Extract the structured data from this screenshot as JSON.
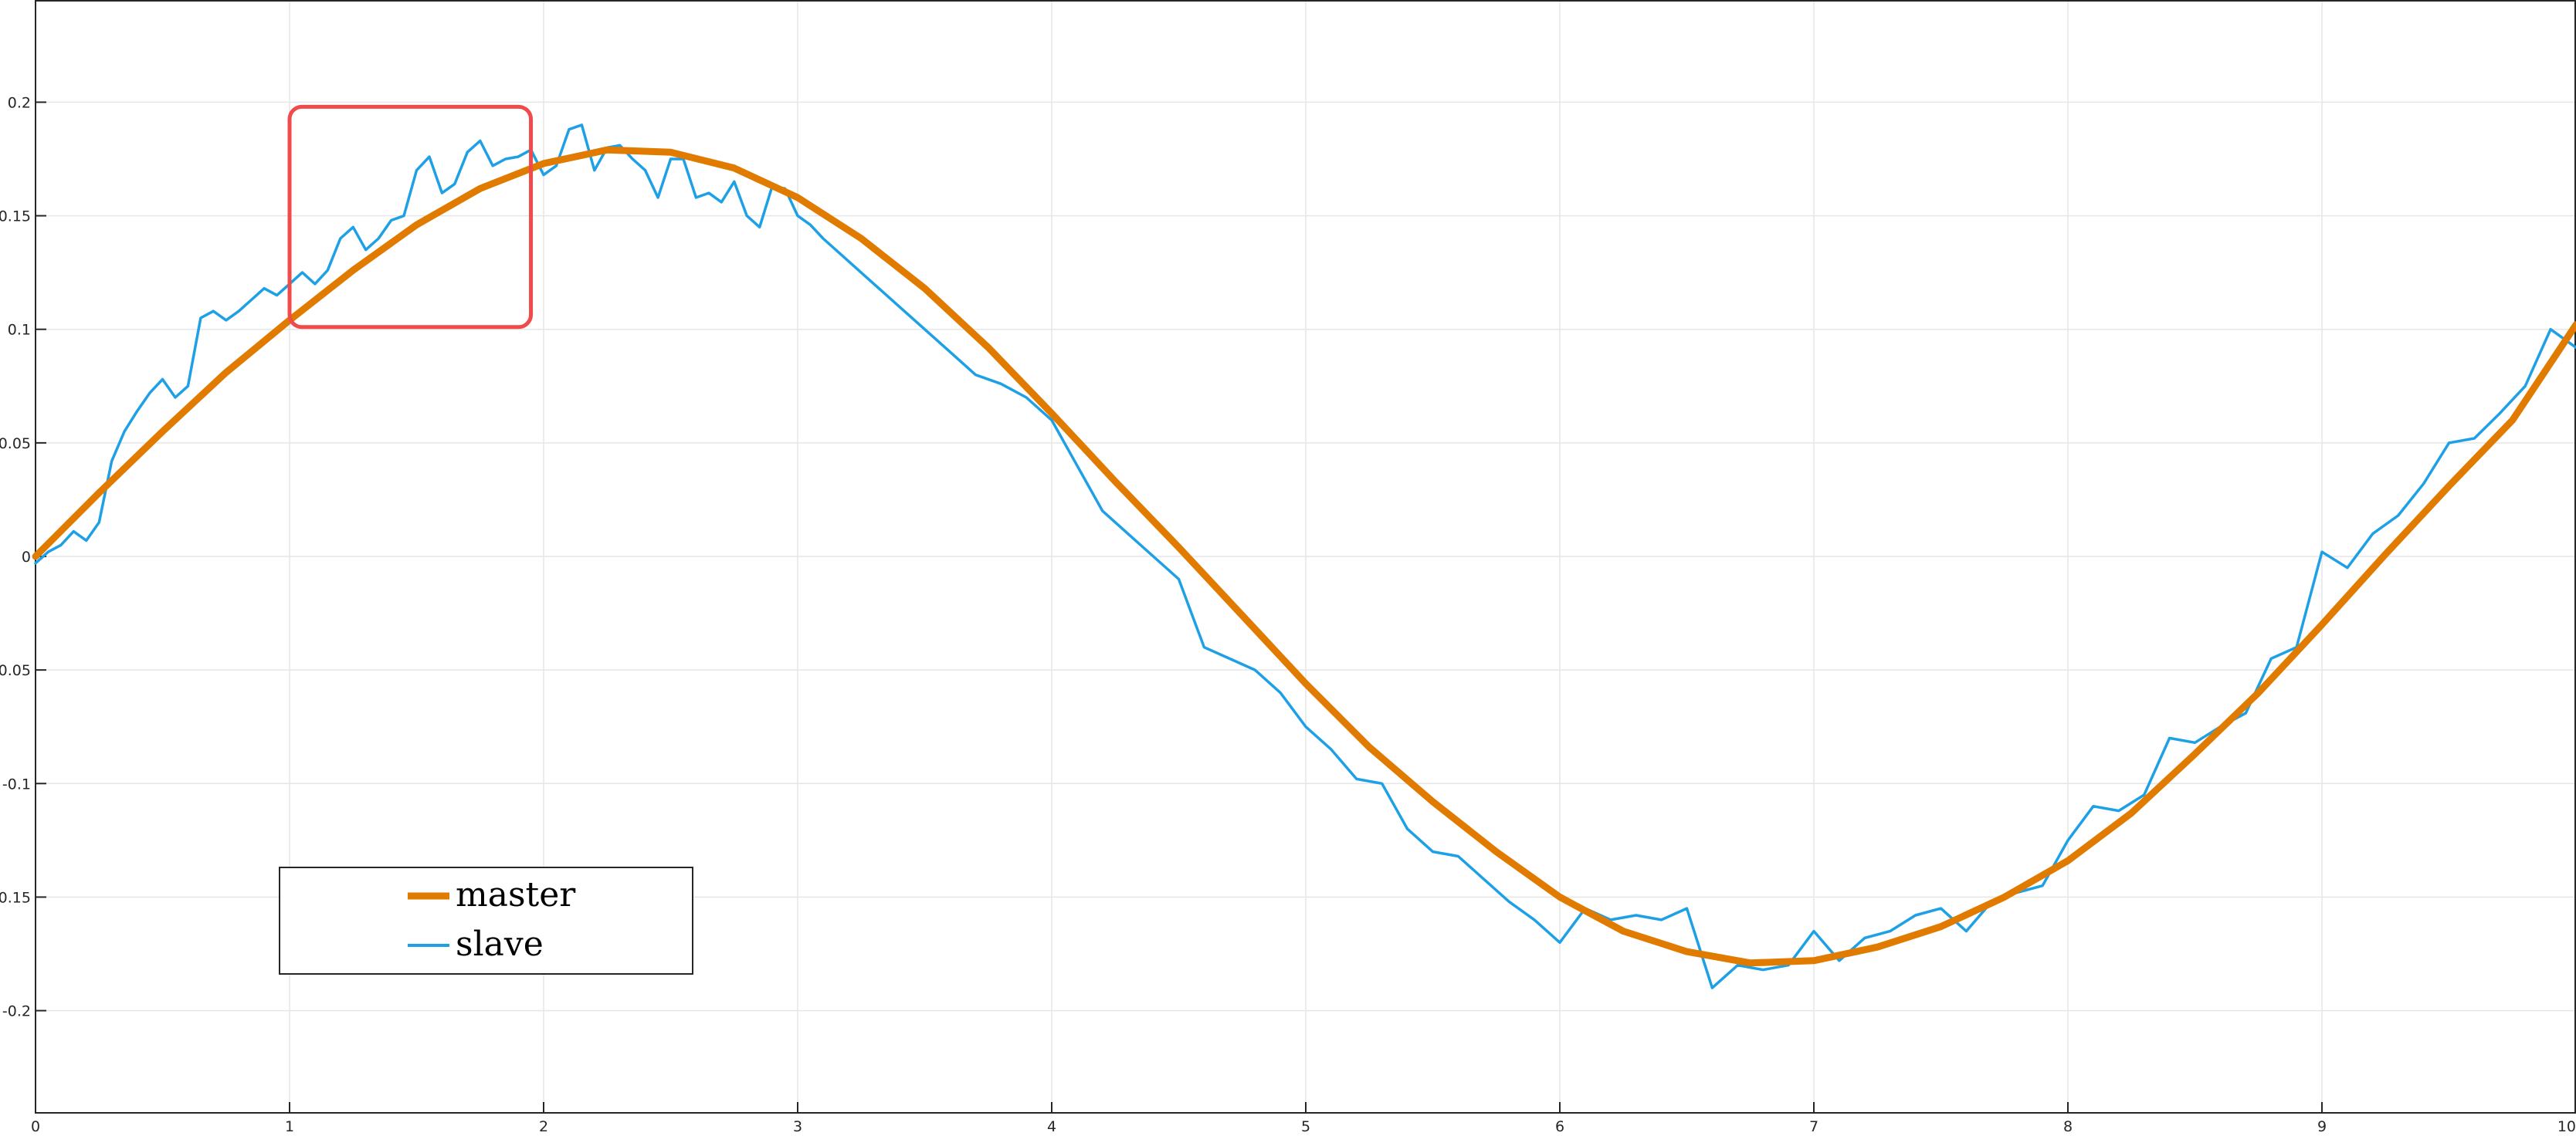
{
  "chart_data": {
    "type": "line",
    "title": "",
    "xlabel": "",
    "ylabel": "",
    "xlim": [
      0,
      10
    ],
    "ylim": [
      -0.245,
      0.245
    ],
    "grid": true,
    "legend_position": "bottom-left",
    "x_ticks": [
      0,
      1,
      2,
      3,
      4,
      5,
      6,
      7,
      8,
      9,
      10
    ],
    "x_tick_labels": [
      "0",
      "1",
      "2",
      "3",
      "4",
      "5",
      "6",
      "7",
      "8",
      "9",
      "10"
    ],
    "y_ticks": [
      0.2,
      0.15,
      0.1,
      0.05,
      0,
      -0.05,
      -0.1,
      -0.15,
      -0.2
    ],
    "y_tick_labels": [
      "0.2",
      "0.15",
      "0.1",
      "0.05",
      "0",
      "-0.05",
      "-0.1",
      "-0.15",
      "-0.2"
    ],
    "series": [
      {
        "name": "master",
        "color": "#e07b00",
        "x": [
          0,
          0.25,
          0.5,
          0.75,
          1.0,
          1.25,
          1.5,
          1.75,
          2.0,
          2.25,
          2.5,
          2.75,
          3.0,
          3.25,
          3.5,
          3.75,
          4.0,
          4.25,
          4.5,
          4.75,
          5.0,
          5.25,
          5.5,
          5.75,
          6.0,
          6.25,
          6.5,
          6.75,
          7.0,
          7.25,
          7.5,
          7.75,
          8.0,
          8.25,
          8.5,
          8.75,
          9.0,
          9.25,
          9.5,
          9.75,
          10.0
        ],
        "y": [
          0,
          0.028,
          0.055,
          0.081,
          0.104,
          0.126,
          0.146,
          0.162,
          0.173,
          0.179,
          0.178,
          0.171,
          0.158,
          0.14,
          0.118,
          0.092,
          0.063,
          0.033,
          0.004,
          -0.026,
          -0.056,
          -0.084,
          -0.108,
          -0.13,
          -0.15,
          -0.165,
          -0.174,
          -0.179,
          -0.178,
          -0.172,
          -0.163,
          -0.15,
          -0.134,
          -0.113,
          -0.087,
          -0.06,
          -0.03,
          0.001,
          0.031,
          0.06,
          0.102
        ]
      },
      {
        "name": "slave",
        "color": "#1ea0e6",
        "x": [
          0,
          0.05,
          0.1,
          0.15,
          0.2,
          0.25,
          0.3,
          0.35,
          0.4,
          0.45,
          0.5,
          0.55,
          0.6,
          0.65,
          0.7,
          0.75,
          0.8,
          0.85,
          0.9,
          0.95,
          1.0,
          1.05,
          1.1,
          1.15,
          1.2,
          1.25,
          1.3,
          1.35,
          1.4,
          1.45,
          1.5,
          1.55,
          1.6,
          1.65,
          1.7,
          1.75,
          1.8,
          1.85,
          1.9,
          1.95,
          2.0,
          2.05,
          2.1,
          2.15,
          2.2,
          2.25,
          2.3,
          2.35,
          2.4,
          2.45,
          2.5,
          2.55,
          2.6,
          2.65,
          2.7,
          2.75,
          2.8,
          2.85,
          2.9,
          2.95,
          3.0,
          3.05,
          3.1,
          3.2,
          3.3,
          3.4,
          3.5,
          3.6,
          3.7,
          3.8,
          3.9,
          4.0,
          4.1,
          4.2,
          4.3,
          4.4,
          4.5,
          4.6,
          4.7,
          4.8,
          4.9,
          5.0,
          5.1,
          5.2,
          5.3,
          5.4,
          5.5,
          5.6,
          5.7,
          5.8,
          5.9,
          6.0,
          6.1,
          6.2,
          6.3,
          6.4,
          6.5,
          6.6,
          6.7,
          6.8,
          6.9,
          7.0,
          7.1,
          7.2,
          7.3,
          7.4,
          7.5,
          7.6,
          7.7,
          7.8,
          7.9,
          8.0,
          8.1,
          8.2,
          8.3,
          8.4,
          8.5,
          8.6,
          8.7,
          8.8,
          8.9,
          9.0,
          9.1,
          9.2,
          9.3,
          9.4,
          9.5,
          9.6,
          9.7,
          9.8,
          9.9,
          10.0
        ],
        "y": [
          -0.003,
          0.002,
          0.005,
          0.011,
          0.007,
          0.015,
          0.042,
          0.055,
          0.064,
          0.072,
          0.078,
          0.07,
          0.075,
          0.105,
          0.108,
          0.104,
          0.108,
          0.113,
          0.118,
          0.115,
          0.12,
          0.125,
          0.12,
          0.126,
          0.14,
          0.145,
          0.135,
          0.14,
          0.148,
          0.15,
          0.17,
          0.176,
          0.16,
          0.164,
          0.178,
          0.183,
          0.172,
          0.175,
          0.176,
          0.179,
          0.168,
          0.172,
          0.188,
          0.19,
          0.17,
          0.18,
          0.181,
          0.175,
          0.17,
          0.158,
          0.175,
          0.175,
          0.158,
          0.16,
          0.156,
          0.165,
          0.15,
          0.145,
          0.163,
          0.162,
          0.15,
          0.146,
          0.14,
          0.13,
          0.12,
          0.11,
          0.1,
          0.09,
          0.08,
          0.076,
          0.07,
          0.06,
          0.04,
          0.02,
          0.01,
          0.0,
          -0.01,
          -0.04,
          -0.045,
          -0.05,
          -0.06,
          -0.075,
          -0.085,
          -0.098,
          -0.1,
          -0.12,
          -0.13,
          -0.132,
          -0.142,
          -0.152,
          -0.16,
          -0.17,
          -0.155,
          -0.16,
          -0.158,
          -0.16,
          -0.155,
          -0.19,
          -0.18,
          -0.182,
          -0.18,
          -0.165,
          -0.178,
          -0.168,
          -0.165,
          -0.158,
          -0.155,
          -0.165,
          -0.152,
          -0.148,
          -0.145,
          -0.125,
          -0.11,
          -0.112,
          -0.105,
          -0.08,
          -0.082,
          -0.075,
          -0.069,
          -0.045,
          -0.04,
          0.002,
          -0.005,
          0.01,
          0.018,
          0.032,
          0.05,
          0.052,
          0.063,
          0.075,
          0.1,
          0.092
        ]
      }
    ],
    "annotations": [
      {
        "type": "highlight-box",
        "color": "#f04a4a",
        "x_range": [
          1.0,
          1.95
        ],
        "y_range": [
          0.101,
          0.198
        ]
      }
    ]
  },
  "legend": {
    "entries": [
      "master",
      "slave"
    ]
  }
}
